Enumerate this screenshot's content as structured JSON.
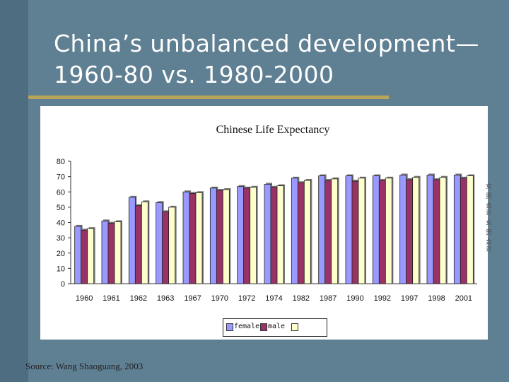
{
  "slide": {
    "title_line1": "China’s unbalanced development—",
    "title_line2": "1960-80 vs. 1980-2000",
    "source": "Source: Wang Shaoguang, 2003"
  },
  "colors": {
    "background": "#5f7f93",
    "accent_rule": "#b9a55a",
    "female": "#9999ff",
    "male": "#993366",
    "total": "#ffffcc"
  },
  "chart_data": {
    "type": "bar",
    "title": "Chinese Life Expectancy",
    "categories": [
      "1960",
      "1961",
      "1962",
      "1963",
      "1967",
      "1970",
      "1972",
      "1974",
      "1982",
      "1987",
      "1990",
      "1992",
      "1997",
      "1998",
      "2001"
    ],
    "series": [
      {
        "name": "female",
        "values": [
          37.5,
          41,
          56.5,
          53,
          60,
          62.5,
          63.5,
          65,
          69,
          70.5,
          70.5,
          70.5,
          71,
          71,
          71
        ]
      },
      {
        "name": "male",
        "values": [
          35,
          39.5,
          51,
          47,
          59,
          61,
          62.5,
          63,
          66,
          67.5,
          67,
          67.5,
          68,
          68,
          69
        ]
      },
      {
        "name": "",
        "values": [
          36,
          40.5,
          53.5,
          50,
          59.5,
          61.5,
          63,
          64,
          67.5,
          68.5,
          69,
          69,
          69.5,
          69.5,
          70.5
        ]
      }
    ],
    "ylim": [
      0,
      80
    ],
    "yticks": [
      0,
      10,
      20,
      30,
      40,
      50,
      60,
      70,
      80
    ],
    "grid": false,
    "legend": "bottom",
    "vertical_text": "女 男 合计 女 男 合计"
  }
}
